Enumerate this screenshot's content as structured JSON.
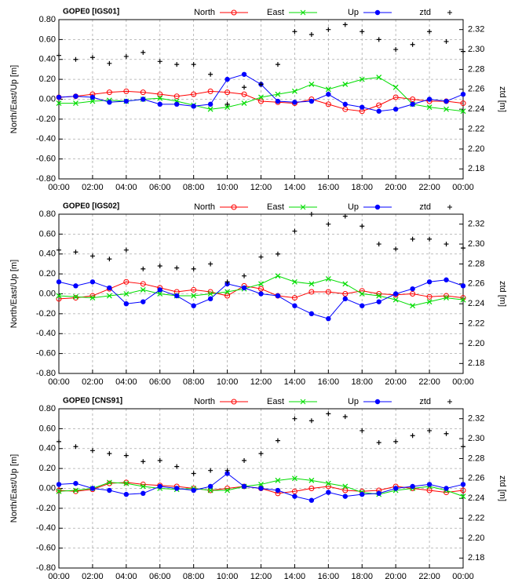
{
  "chart_data": [
    {
      "type": "line",
      "title": "GOPE0 [IGS01]",
      "ylabel": "North/East/Up [m]",
      "y2label": "ztd [m]",
      "legend": "top",
      "grid": true,
      "x": [
        0,
        1,
        2,
        3,
        4,
        5,
        6,
        7,
        8,
        9,
        10,
        11,
        12,
        13,
        14,
        15,
        16,
        17,
        18,
        19,
        20,
        21,
        22,
        23,
        24
      ],
      "xlim": [
        0,
        24
      ],
      "xticks": [
        {
          "value": 0,
          "label": "00:00"
        },
        {
          "value": 2,
          "label": "02:00"
        },
        {
          "value": 4,
          "label": "04:00"
        },
        {
          "value": 6,
          "label": "06:00"
        },
        {
          "value": 8,
          "label": "08:00"
        },
        {
          "value": 10,
          "label": "10:00"
        },
        {
          "value": 12,
          "label": "12:00"
        },
        {
          "value": 14,
          "label": "14:00"
        },
        {
          "value": 16,
          "label": "16:00"
        },
        {
          "value": 18,
          "label": "18:00"
        },
        {
          "value": 20,
          "label": "20:00"
        },
        {
          "value": 22,
          "label": "22:00"
        },
        {
          "value": 24,
          "label": "00:00"
        }
      ],
      "ylim": [
        -0.8,
        0.8
      ],
      "yticks": [
        {
          "value": 0.8,
          "label": "0.80"
        },
        {
          "value": 0.6,
          "label": "0.60"
        },
        {
          "value": 0.4,
          "label": "0.40"
        },
        {
          "value": 0.2,
          "label": "0.20"
        },
        {
          "value": 0,
          "label": "0.00"
        },
        {
          "value": -0.2,
          "label": "-0.20"
        },
        {
          "value": -0.4,
          "label": "-0.40"
        },
        {
          "value": -0.6,
          "label": "-0.60"
        },
        {
          "value": -0.8,
          "label": "-0.80"
        }
      ],
      "y2lim": [
        2.17,
        2.33
      ],
      "y2ticks": [
        {
          "value": 2.18,
          "label": "2.18"
        },
        {
          "value": 2.2,
          "label": "2.20"
        },
        {
          "value": 2.22,
          "label": "2.22"
        },
        {
          "value": 2.24,
          "label": "2.24"
        },
        {
          "value": 2.26,
          "label": "2.26"
        },
        {
          "value": 2.28,
          "label": "2.28"
        },
        {
          "value": 2.3,
          "label": "2.30"
        },
        {
          "value": 2.32,
          "label": "2.32"
        }
      ],
      "series": [
        {
          "name": "North",
          "color": "#ff0000",
          "marker": "circle-open",
          "values": [
            0.02,
            0.03,
            0.05,
            0.07,
            0.08,
            0.07,
            0.05,
            0.03,
            0.05,
            0.08,
            0.07,
            0.05,
            -0.02,
            -0.03,
            -0.04,
            0.0,
            -0.05,
            -0.1,
            -0.12,
            -0.06,
            0.02,
            0.0,
            -0.02,
            -0.02,
            -0.04
          ]
        },
        {
          "name": "East",
          "color": "#00dd00",
          "marker": "x",
          "values": [
            -0.04,
            -0.04,
            -0.02,
            -0.01,
            -0.02,
            0.0,
            0.01,
            -0.02,
            -0.06,
            -0.1,
            -0.08,
            -0.04,
            0.02,
            0.05,
            0.08,
            0.15,
            0.1,
            0.15,
            0.2,
            0.22,
            0.12,
            -0.05,
            -0.08,
            -0.1,
            -0.12
          ]
        },
        {
          "name": "Up",
          "color": "#0000ff",
          "marker": "circle",
          "values": [
            0.02,
            0.03,
            0.02,
            -0.03,
            -0.02,
            0.0,
            -0.05,
            -0.05,
            -0.07,
            -0.05,
            0.2,
            0.25,
            0.15,
            -0.02,
            -0.03,
            -0.02,
            0.05,
            -0.05,
            -0.08,
            -0.12,
            -0.1,
            -0.05,
            0.0,
            -0.02,
            0.05
          ]
        },
        {
          "name": "ztd",
          "color": "#000000",
          "marker": "plus",
          "axis": "y2",
          "values": [
            2.294,
            2.29,
            2.292,
            2.286,
            2.293,
            2.297,
            2.288,
            2.285,
            2.285,
            2.275,
            2.245,
            2.262,
            2.265,
            2.285,
            2.318,
            2.315,
            2.32,
            2.325,
            2.318,
            2.31,
            2.3,
            2.305,
            2.318,
            2.308,
            2.298
          ]
        }
      ]
    },
    {
      "type": "line",
      "title": "GOPE0 [IGS02]",
      "ylabel": "North/East/Up [m]",
      "y2label": "ztd [m]",
      "legend": "top",
      "grid": true,
      "x": [
        0,
        1,
        2,
        3,
        4,
        5,
        6,
        7,
        8,
        9,
        10,
        11,
        12,
        13,
        14,
        15,
        16,
        17,
        18,
        19,
        20,
        21,
        22,
        23,
        24
      ],
      "xlim": [
        0,
        24
      ],
      "xticks": [
        {
          "value": 0,
          "label": "00:00"
        },
        {
          "value": 2,
          "label": "02:00"
        },
        {
          "value": 4,
          "label": "04:00"
        },
        {
          "value": 6,
          "label": "06:00"
        },
        {
          "value": 8,
          "label": "08:00"
        },
        {
          "value": 10,
          "label": "10:00"
        },
        {
          "value": 12,
          "label": "12:00"
        },
        {
          "value": 14,
          "label": "14:00"
        },
        {
          "value": 16,
          "label": "16:00"
        },
        {
          "value": 18,
          "label": "18:00"
        },
        {
          "value": 20,
          "label": "20:00"
        },
        {
          "value": 22,
          "label": "22:00"
        },
        {
          "value": 24,
          "label": "00:00"
        }
      ],
      "ylim": [
        -0.8,
        0.8
      ],
      "yticks": [
        {
          "value": 0.8,
          "label": "0.80"
        },
        {
          "value": 0.6,
          "label": "0.60"
        },
        {
          "value": 0.4,
          "label": "0.40"
        },
        {
          "value": 0.2,
          "label": "0.20"
        },
        {
          "value": 0,
          "label": "0.00"
        },
        {
          "value": -0.2,
          "label": "-0.20"
        },
        {
          "value": -0.4,
          "label": "-0.40"
        },
        {
          "value": -0.6,
          "label": "-0.60"
        },
        {
          "value": -0.8,
          "label": "-0.80"
        }
      ],
      "y2lim": [
        2.17,
        2.33
      ],
      "y2ticks": [
        {
          "value": 2.18,
          "label": "2.18"
        },
        {
          "value": 2.2,
          "label": "2.20"
        },
        {
          "value": 2.22,
          "label": "2.22"
        },
        {
          "value": 2.24,
          "label": "2.24"
        },
        {
          "value": 2.26,
          "label": "2.26"
        },
        {
          "value": 2.28,
          "label": "2.28"
        },
        {
          "value": 2.3,
          "label": "2.30"
        },
        {
          "value": 2.32,
          "label": "2.32"
        }
      ],
      "series": [
        {
          "name": "North",
          "color": "#ff0000",
          "marker": "circle-open",
          "values": [
            -0.05,
            -0.04,
            -0.02,
            0.05,
            0.12,
            0.1,
            0.06,
            0.02,
            0.04,
            0.02,
            -0.02,
            0.08,
            0.05,
            -0.02,
            -0.04,
            0.02,
            0.02,
            0.0,
            0.03,
            0.0,
            -0.01,
            0.0,
            -0.03,
            -0.02,
            -0.04
          ]
        },
        {
          "name": "East",
          "color": "#00dd00",
          "marker": "x",
          "values": [
            -0.02,
            -0.03,
            -0.04,
            -0.02,
            0.0,
            0.04,
            0.0,
            -0.02,
            -0.02,
            0.0,
            0.02,
            0.05,
            0.1,
            0.18,
            0.12,
            0.1,
            0.15,
            0.1,
            0.0,
            -0.02,
            -0.06,
            -0.12,
            -0.08,
            -0.04,
            -0.06
          ]
        },
        {
          "name": "Up",
          "color": "#0000ff",
          "marker": "circle",
          "values": [
            0.12,
            0.08,
            0.12,
            0.06,
            -0.1,
            -0.08,
            0.04,
            -0.02,
            -0.12,
            -0.05,
            0.1,
            0.06,
            0.0,
            -0.02,
            -0.12,
            -0.2,
            -0.25,
            -0.05,
            -0.12,
            -0.08,
            0.0,
            0.05,
            0.12,
            0.14,
            0.08
          ]
        },
        {
          "name": "ztd",
          "color": "#000000",
          "marker": "plus",
          "axis": "y2",
          "values": [
            2.294,
            2.292,
            2.288,
            2.285,
            2.294,
            2.275,
            2.278,
            2.276,
            2.275,
            2.28,
            2.262,
            2.268,
            2.287,
            2.29,
            2.313,
            2.33,
            2.32,
            2.328,
            2.318,
            2.3,
            2.295,
            2.305,
            2.305,
            2.3,
            2.296
          ]
        }
      ]
    },
    {
      "type": "line",
      "title": "GOPE0 [CNS91]",
      "ylabel": "North/East/Up [m]",
      "y2label": "ztd [m]",
      "legend": "top",
      "grid": true,
      "x": [
        0,
        1,
        2,
        3,
        4,
        5,
        6,
        7,
        8,
        9,
        10,
        11,
        12,
        13,
        14,
        15,
        16,
        17,
        18,
        19,
        20,
        21,
        22,
        23,
        24
      ],
      "xlim": [
        0,
        24
      ],
      "xticks": [
        {
          "value": 0,
          "label": "00:00"
        },
        {
          "value": 2,
          "label": "02:00"
        },
        {
          "value": 4,
          "label": "04:00"
        },
        {
          "value": 6,
          "label": "06:00"
        },
        {
          "value": 8,
          "label": "08:00"
        },
        {
          "value": 10,
          "label": "10:00"
        },
        {
          "value": 12,
          "label": "12:00"
        },
        {
          "value": 14,
          "label": "14:00"
        },
        {
          "value": 16,
          "label": "16:00"
        },
        {
          "value": 18,
          "label": "18:00"
        },
        {
          "value": 20,
          "label": "20:00"
        },
        {
          "value": 22,
          "label": "22:00"
        },
        {
          "value": 24,
          "label": "00:00"
        }
      ],
      "ylim": [
        -0.8,
        0.8
      ],
      "yticks": [
        {
          "value": 0.8,
          "label": "0.80"
        },
        {
          "value": 0.6,
          "label": "0.60"
        },
        {
          "value": 0.4,
          "label": "0.40"
        },
        {
          "value": 0.2,
          "label": "0.20"
        },
        {
          "value": 0,
          "label": "0.00"
        },
        {
          "value": -0.2,
          "label": "-0.20"
        },
        {
          "value": -0.4,
          "label": "-0.40"
        },
        {
          "value": -0.6,
          "label": "-0.60"
        },
        {
          "value": -0.8,
          "label": "-0.80"
        }
      ],
      "y2lim": [
        2.17,
        2.33
      ],
      "y2ticks": [
        {
          "value": 2.18,
          "label": "2.18"
        },
        {
          "value": 2.2,
          "label": "2.20"
        },
        {
          "value": 2.22,
          "label": "2.22"
        },
        {
          "value": 2.24,
          "label": "2.24"
        },
        {
          "value": 2.26,
          "label": "2.26"
        },
        {
          "value": 2.28,
          "label": "2.28"
        },
        {
          "value": 2.3,
          "label": "2.30"
        },
        {
          "value": 2.32,
          "label": "2.32"
        }
      ],
      "series": [
        {
          "name": "North",
          "color": "#ff0000",
          "marker": "circle-open",
          "values": [
            -0.02,
            -0.03,
            -0.01,
            0.05,
            0.06,
            0.04,
            0.03,
            0.02,
            0.0,
            -0.02,
            0.0,
            0.02,
            0.0,
            -0.05,
            -0.03,
            0.0,
            0.02,
            -0.02,
            -0.03,
            -0.02,
            0.02,
            0.0,
            -0.02,
            -0.04,
            -0.02
          ]
        },
        {
          "name": "East",
          "color": "#00dd00",
          "marker": "x",
          "values": [
            -0.03,
            -0.02,
            0.0,
            0.06,
            0.05,
            0.02,
            0.0,
            -0.01,
            0.0,
            -0.02,
            -0.02,
            0.02,
            0.04,
            0.08,
            0.1,
            0.08,
            0.05,
            0.02,
            -0.04,
            -0.06,
            -0.02,
            0.0,
            0.02,
            -0.02,
            -0.08
          ]
        },
        {
          "name": "Up",
          "color": "#0000ff",
          "marker": "circle",
          "values": [
            0.04,
            0.05,
            0.0,
            -0.02,
            -0.06,
            -0.05,
            0.02,
            0.0,
            -0.02,
            0.02,
            0.15,
            0.02,
            0.0,
            -0.02,
            -0.08,
            -0.12,
            -0.04,
            -0.08,
            -0.06,
            -0.05,
            0.0,
            0.02,
            0.04,
            0.0,
            0.04
          ]
        },
        {
          "name": "ztd",
          "color": "#000000",
          "marker": "plus",
          "axis": "y2",
          "values": [
            2.297,
            2.292,
            2.288,
            2.285,
            2.283,
            2.277,
            2.278,
            2.272,
            2.265,
            2.268,
            2.268,
            2.278,
            2.285,
            2.298,
            2.32,
            2.318,
            2.325,
            2.322,
            2.308,
            2.296,
            2.297,
            2.303,
            2.308,
            2.305,
            2.292
          ]
        }
      ]
    }
  ]
}
